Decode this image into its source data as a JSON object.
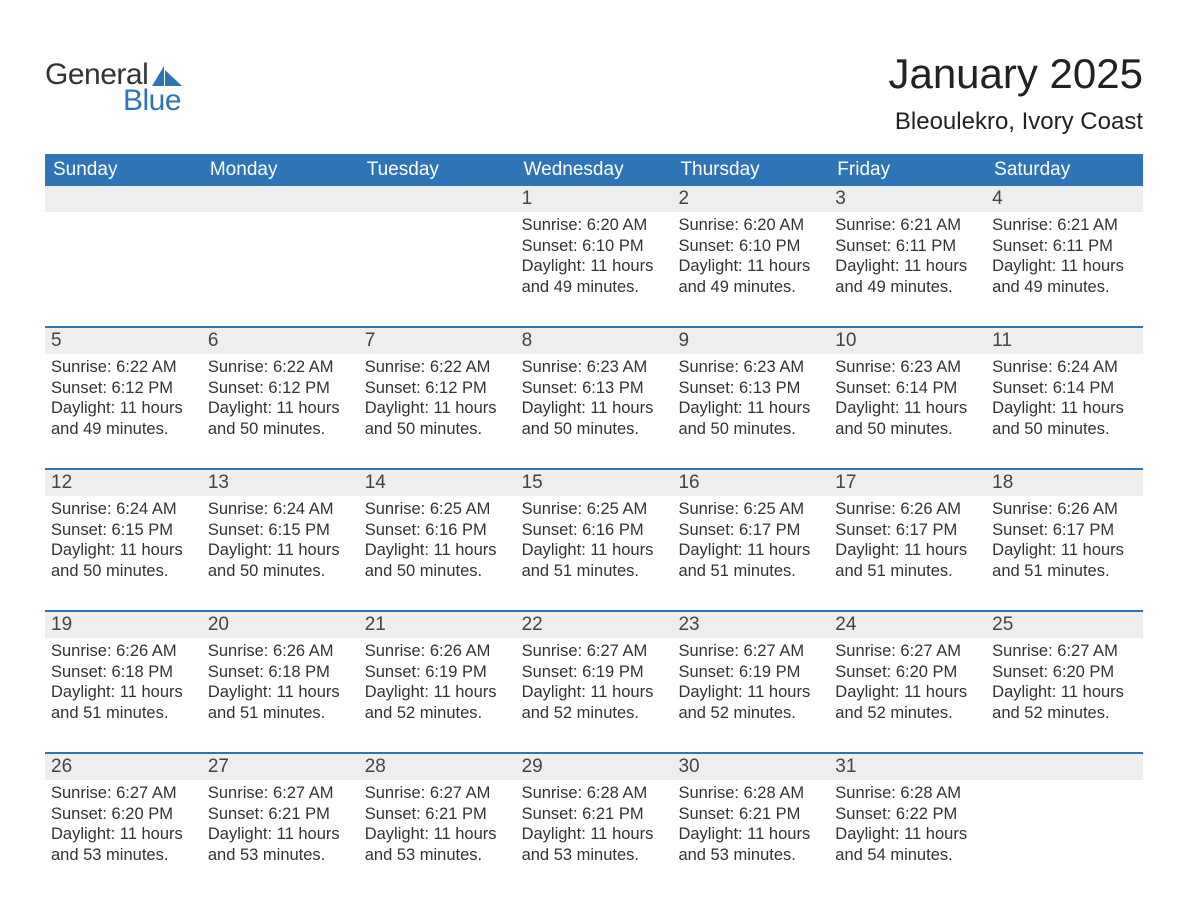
{
  "brand": {
    "word1": "General",
    "word2": "Blue",
    "accent": "#2f74b5"
  },
  "title": "January 2025",
  "location": "Bleoulekro, Ivory Coast",
  "day_names": [
    "Sunday",
    "Monday",
    "Tuesday",
    "Wednesday",
    "Thursday",
    "Friday",
    "Saturday"
  ],
  "colors": {
    "header_bg": "#2f74b5",
    "header_text": "#ffffff",
    "daynum_bg": "#eeeeee",
    "week_border": "#2f74b5",
    "text": "#333333",
    "bg": "#ffffff"
  },
  "fonts": {
    "title_pt": 42,
    "location_pt": 24,
    "dayheader_pt": 19,
    "daynum_pt": 19,
    "body_pt": 16.5
  },
  "layout": {
    "columns": 7,
    "rows": 5,
    "first_day_column_index": 3
  },
  "weeks": [
    [
      null,
      null,
      null,
      {
        "n": "1",
        "sunrise": "6:20 AM",
        "sunset": "6:10 PM",
        "dl1": "Daylight: 11 hours",
        "dl2": "and 49 minutes."
      },
      {
        "n": "2",
        "sunrise": "6:20 AM",
        "sunset": "6:10 PM",
        "dl1": "Daylight: 11 hours",
        "dl2": "and 49 minutes."
      },
      {
        "n": "3",
        "sunrise": "6:21 AM",
        "sunset": "6:11 PM",
        "dl1": "Daylight: 11 hours",
        "dl2": "and 49 minutes."
      },
      {
        "n": "4",
        "sunrise": "6:21 AM",
        "sunset": "6:11 PM",
        "dl1": "Daylight: 11 hours",
        "dl2": "and 49 minutes."
      }
    ],
    [
      {
        "n": "5",
        "sunrise": "6:22 AM",
        "sunset": "6:12 PM",
        "dl1": "Daylight: 11 hours",
        "dl2": "and 49 minutes."
      },
      {
        "n": "6",
        "sunrise": "6:22 AM",
        "sunset": "6:12 PM",
        "dl1": "Daylight: 11 hours",
        "dl2": "and 50 minutes."
      },
      {
        "n": "7",
        "sunrise": "6:22 AM",
        "sunset": "6:12 PM",
        "dl1": "Daylight: 11 hours",
        "dl2": "and 50 minutes."
      },
      {
        "n": "8",
        "sunrise": "6:23 AM",
        "sunset": "6:13 PM",
        "dl1": "Daylight: 11 hours",
        "dl2": "and 50 minutes."
      },
      {
        "n": "9",
        "sunrise": "6:23 AM",
        "sunset": "6:13 PM",
        "dl1": "Daylight: 11 hours",
        "dl2": "and 50 minutes."
      },
      {
        "n": "10",
        "sunrise": "6:23 AM",
        "sunset": "6:14 PM",
        "dl1": "Daylight: 11 hours",
        "dl2": "and 50 minutes."
      },
      {
        "n": "11",
        "sunrise": "6:24 AM",
        "sunset": "6:14 PM",
        "dl1": "Daylight: 11 hours",
        "dl2": "and 50 minutes."
      }
    ],
    [
      {
        "n": "12",
        "sunrise": "6:24 AM",
        "sunset": "6:15 PM",
        "dl1": "Daylight: 11 hours",
        "dl2": "and 50 minutes."
      },
      {
        "n": "13",
        "sunrise": "6:24 AM",
        "sunset": "6:15 PM",
        "dl1": "Daylight: 11 hours",
        "dl2": "and 50 minutes."
      },
      {
        "n": "14",
        "sunrise": "6:25 AM",
        "sunset": "6:16 PM",
        "dl1": "Daylight: 11 hours",
        "dl2": "and 50 minutes."
      },
      {
        "n": "15",
        "sunrise": "6:25 AM",
        "sunset": "6:16 PM",
        "dl1": "Daylight: 11 hours",
        "dl2": "and 51 minutes."
      },
      {
        "n": "16",
        "sunrise": "6:25 AM",
        "sunset": "6:17 PM",
        "dl1": "Daylight: 11 hours",
        "dl2": "and 51 minutes."
      },
      {
        "n": "17",
        "sunrise": "6:26 AM",
        "sunset": "6:17 PM",
        "dl1": "Daylight: 11 hours",
        "dl2": "and 51 minutes."
      },
      {
        "n": "18",
        "sunrise": "6:26 AM",
        "sunset": "6:17 PM",
        "dl1": "Daylight: 11 hours",
        "dl2": "and 51 minutes."
      }
    ],
    [
      {
        "n": "19",
        "sunrise": "6:26 AM",
        "sunset": "6:18 PM",
        "dl1": "Daylight: 11 hours",
        "dl2": "and 51 minutes."
      },
      {
        "n": "20",
        "sunrise": "6:26 AM",
        "sunset": "6:18 PM",
        "dl1": "Daylight: 11 hours",
        "dl2": "and 51 minutes."
      },
      {
        "n": "21",
        "sunrise": "6:26 AM",
        "sunset": "6:19 PM",
        "dl1": "Daylight: 11 hours",
        "dl2": "and 52 minutes."
      },
      {
        "n": "22",
        "sunrise": "6:27 AM",
        "sunset": "6:19 PM",
        "dl1": "Daylight: 11 hours",
        "dl2": "and 52 minutes."
      },
      {
        "n": "23",
        "sunrise": "6:27 AM",
        "sunset": "6:19 PM",
        "dl1": "Daylight: 11 hours",
        "dl2": "and 52 minutes."
      },
      {
        "n": "24",
        "sunrise": "6:27 AM",
        "sunset": "6:20 PM",
        "dl1": "Daylight: 11 hours",
        "dl2": "and 52 minutes."
      },
      {
        "n": "25",
        "sunrise": "6:27 AM",
        "sunset": "6:20 PM",
        "dl1": "Daylight: 11 hours",
        "dl2": "and 52 minutes."
      }
    ],
    [
      {
        "n": "26",
        "sunrise": "6:27 AM",
        "sunset": "6:20 PM",
        "dl1": "Daylight: 11 hours",
        "dl2": "and 53 minutes."
      },
      {
        "n": "27",
        "sunrise": "6:27 AM",
        "sunset": "6:21 PM",
        "dl1": "Daylight: 11 hours",
        "dl2": "and 53 minutes."
      },
      {
        "n": "28",
        "sunrise": "6:27 AM",
        "sunset": "6:21 PM",
        "dl1": "Daylight: 11 hours",
        "dl2": "and 53 minutes."
      },
      {
        "n": "29",
        "sunrise": "6:28 AM",
        "sunset": "6:21 PM",
        "dl1": "Daylight: 11 hours",
        "dl2": "and 53 minutes."
      },
      {
        "n": "30",
        "sunrise": "6:28 AM",
        "sunset": "6:21 PM",
        "dl1": "Daylight: 11 hours",
        "dl2": "and 53 minutes."
      },
      {
        "n": "31",
        "sunrise": "6:28 AM",
        "sunset": "6:22 PM",
        "dl1": "Daylight: 11 hours",
        "dl2": "and 54 minutes."
      },
      null
    ]
  ],
  "labels": {
    "sunrise_prefix": "Sunrise: ",
    "sunset_prefix": "Sunset: "
  }
}
